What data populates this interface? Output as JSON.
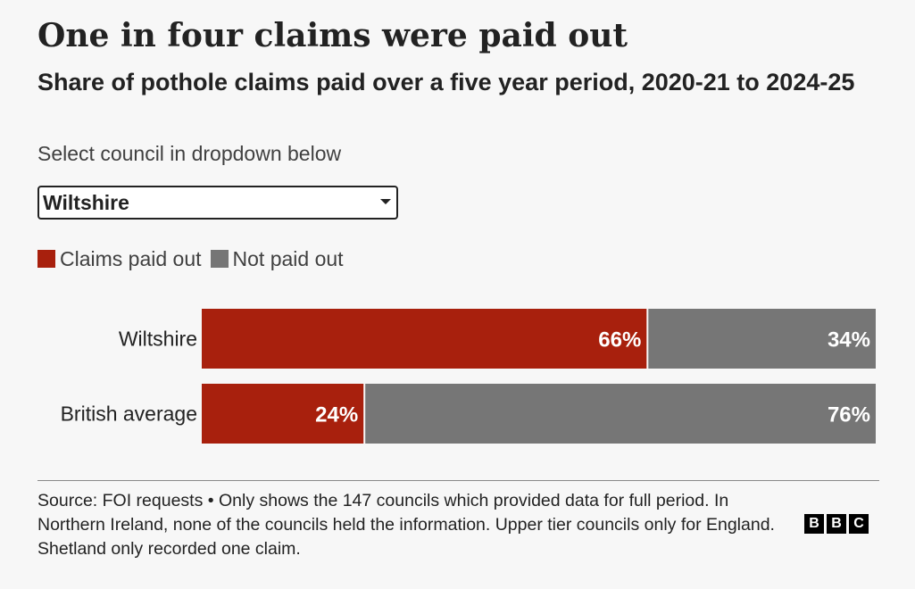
{
  "header": {
    "title": "One in four claims were paid out",
    "subtitle": "Share of pothole claims paid over a five year period, 2020-21 to 2024-25",
    "instruction": "Select council in dropdown below"
  },
  "dropdown": {
    "selected": "Wiltshire"
  },
  "legend": [
    {
      "label": "Claims paid out",
      "color": "#a8200d"
    },
    {
      "label": "Not paid out",
      "color": "#767676"
    }
  ],
  "chart_data": {
    "type": "bar",
    "orientation": "horizontal",
    "stacked": true,
    "categories": [
      "Wiltshire",
      "British average"
    ],
    "series": [
      {
        "name": "Claims paid out",
        "values": [
          66,
          24
        ],
        "labels": [
          "66%",
          "24%"
        ],
        "color": "#a8200d"
      },
      {
        "name": "Not paid out",
        "values": [
          34,
          76
        ],
        "labels": [
          "34%",
          "76%"
        ],
        "color": "#767676"
      }
    ],
    "xlim": [
      0,
      100
    ],
    "legend_position": "top-left",
    "grid": false
  },
  "footer": {
    "source": "Source: FOI requests • Only shows the 147 councils which provided data for full period. In Northern Ireland, none of the councils held the information. Upper tier councils only for England. Shetland only recorded one claim.",
    "logo_letters": [
      "B",
      "B",
      "C"
    ]
  }
}
